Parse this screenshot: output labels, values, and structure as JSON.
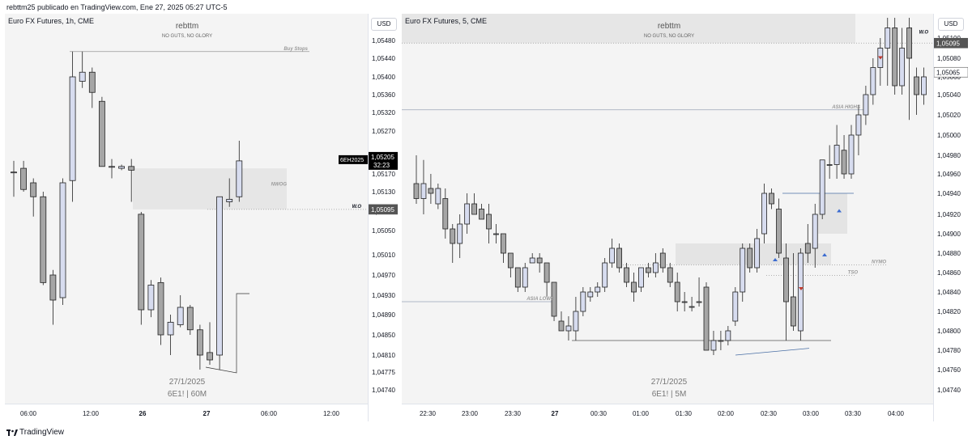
{
  "caption": "rebttm25 publicado en TradingView.com, Ene 27, 2025 05:27 UTC-5",
  "footer": {
    "brand": "TradingView"
  },
  "chart_data": [
    {
      "type": "candlestick",
      "symbol_title": "Euro FX Futures, 1h, CME",
      "watermark_author": "rebttm",
      "watermark_motto": "NO GUTS, NO GLORY",
      "watermark_date": "27/1/2025",
      "watermark_symbol": "6E1! | 60M",
      "currency": "USD",
      "ylim": [
        1.0472,
        1.0552
      ],
      "y_ticks": [
        "1,05480",
        "1,05440",
        "1,05400",
        "1,05360",
        "1,05320",
        "1,05270",
        "1,05220",
        "1,05170",
        "1,05130",
        "1,05090",
        "1,05050",
        "1,05010",
        "1,04970",
        "1,04930",
        "1,04890",
        "1,04850",
        "1,04810",
        "1,04775",
        "1,04740"
      ],
      "x_ticks": [
        "06:00",
        "12:00",
        "26",
        "27",
        "06:00",
        "12:00"
      ],
      "price_labels": [
        {
          "symbol": "6EH2025",
          "price": "1,05205",
          "countdown": "32:23",
          "value": 1.05205
        },
        {
          "price": "1,05095",
          "value": 1.05095
        }
      ],
      "annotations": [
        {
          "text": "Buy Stops",
          "value": 1.05455
        },
        {
          "text": "NWOG",
          "value": 1.0514
        },
        {
          "text": "W.O",
          "value": 1.05095
        }
      ],
      "nwog_zone": [
        1.05095,
        1.05185
      ],
      "candles": [
        {
          "o": 1.05175,
          "h": 1.05205,
          "l": 1.0512,
          "c": 1.05175
        },
        {
          "o": 1.05185,
          "h": 1.05205,
          "l": 1.0513,
          "c": 1.05135
        },
        {
          "o": 1.0515,
          "h": 1.0516,
          "l": 1.0508,
          "c": 1.0512
        },
        {
          "o": 1.0512,
          "h": 1.0513,
          "l": 1.0495,
          "c": 1.04955
        },
        {
          "o": 1.0497,
          "h": 1.0498,
          "l": 1.0487,
          "c": 1.0492
        },
        {
          "o": 1.04925,
          "h": 1.0516,
          "l": 1.0491,
          "c": 1.0515
        },
        {
          "o": 1.05155,
          "h": 1.05455,
          "l": 1.0511,
          "c": 1.054
        },
        {
          "o": 1.0539,
          "h": 1.05455,
          "l": 1.05375,
          "c": 1.0541
        },
        {
          "o": 1.0541,
          "h": 1.0542,
          "l": 1.0533,
          "c": 1.05365
        },
        {
          "o": 1.05345,
          "h": 1.05355,
          "l": 1.0519,
          "c": 1.0519
        },
        {
          "o": 1.0519,
          "h": 1.0521,
          "l": 1.0516,
          "c": 1.0519
        },
        {
          "o": 1.05185,
          "h": 1.05195,
          "l": 1.0518,
          "c": 1.0519
        },
        {
          "o": 1.0519,
          "h": 1.0521,
          "l": 1.0511,
          "c": 1.0518
        },
        {
          "o": 1.05085,
          "h": 1.0509,
          "l": 1.0487,
          "c": 1.049
        },
        {
          "o": 1.049,
          "h": 1.0496,
          "l": 1.04885,
          "c": 1.0495
        },
        {
          "o": 1.04955,
          "h": 1.04965,
          "l": 1.0483,
          "c": 1.0485
        },
        {
          "o": 1.0485,
          "h": 1.0489,
          "l": 1.0481,
          "c": 1.04875
        },
        {
          "o": 1.0487,
          "h": 1.0493,
          "l": 1.04865,
          "c": 1.04905
        },
        {
          "o": 1.04905,
          "h": 1.0491,
          "l": 1.0485,
          "c": 1.0486
        },
        {
          "o": 1.0486,
          "h": 1.0487,
          "l": 1.0478,
          "c": 1.0481
        },
        {
          "o": 1.04815,
          "h": 1.04875,
          "l": 1.0479,
          "c": 1.048
        },
        {
          "o": 1.0481,
          "h": 1.0512,
          "l": 1.0478,
          "c": 1.0512
        },
        {
          "o": 1.0511,
          "h": 1.0516,
          "l": 1.051,
          "c": 1.05115
        },
        {
          "o": 1.0512,
          "h": 1.0525,
          "l": 1.0511,
          "c": 1.05205
        }
      ]
    },
    {
      "type": "candlestick",
      "symbol_title": "Euro FX Futures, 5, CME",
      "watermark_author": "rebttm",
      "watermark_motto": "NO GUTS, NO GLORY",
      "watermark_date": "27/1/2025",
      "watermark_symbol": "6E1! | 5M",
      "currency": "USD",
      "ylim": [
        1.0472,
        1.0552
      ],
      "y_ticks": [
        "1,05100",
        "1,05080",
        "1,05060",
        "1,05040",
        "1,05020",
        "1,05000",
        "1,04980",
        "1,04960",
        "1,04940",
        "1,04920",
        "1,04900",
        "1,04880",
        "1,04860",
        "1,04840",
        "1,04820",
        "1,04800",
        "1,04780",
        "1,04760",
        "1,04740"
      ],
      "x_ticks": [
        "22:30",
        "23:00",
        "23:30",
        "27",
        "00:30",
        "01:00",
        "01:30",
        "02:00",
        "02:30",
        "03:00",
        "03:30",
        "04:00"
      ],
      "price_labels": [
        {
          "price": "1,05095",
          "value": 1.05095
        },
        {
          "price": "1,05065",
          "value": 1.05065
        }
      ],
      "annotations": [
        {
          "text": "ASIA HIGHS",
          "value": 1.05025
        },
        {
          "text": "NYMO",
          "value": 1.04868
        },
        {
          "text": "TSO",
          "value": 1.04857
        },
        {
          "text": "ASIA LOWS",
          "value": 1.0483
        },
        {
          "text": "W.O",
          "value": 1.05095
        }
      ],
      "candles": [
        {
          "o": 1.0495,
          "h": 1.0498,
          "l": 1.0493,
          "c": 1.04935
        },
        {
          "o": 1.04935,
          "h": 1.04975,
          "l": 1.0492,
          "c": 1.0495
        },
        {
          "o": 1.04945,
          "h": 1.0496,
          "l": 1.0493,
          "c": 1.0494
        },
        {
          "o": 1.0493,
          "h": 1.0495,
          "l": 1.04925,
          "c": 1.04945
        },
        {
          "o": 1.04935,
          "h": 1.04945,
          "l": 1.04895,
          "c": 1.04905
        },
        {
          "o": 1.04905,
          "h": 1.0491,
          "l": 1.0487,
          "c": 1.0489
        },
        {
          "o": 1.0489,
          "h": 1.0492,
          "l": 1.04875,
          "c": 1.0491
        },
        {
          "o": 1.0491,
          "h": 1.0494,
          "l": 1.049,
          "c": 1.0493
        },
        {
          "o": 1.0493,
          "h": 1.0494,
          "l": 1.0492,
          "c": 1.0492
        },
        {
          "o": 1.04925,
          "h": 1.0493,
          "l": 1.04915,
          "c": 1.04915
        },
        {
          "o": 1.0492,
          "h": 1.0493,
          "l": 1.0489,
          "c": 1.04905
        },
        {
          "o": 1.049,
          "h": 1.0491,
          "l": 1.0489,
          "c": 1.049
        },
        {
          "o": 1.049,
          "h": 1.049,
          "l": 1.0487,
          "c": 1.0488
        },
        {
          "o": 1.0488,
          "h": 1.0488,
          "l": 1.04855,
          "c": 1.04865
        },
        {
          "o": 1.04865,
          "h": 1.04865,
          "l": 1.0484,
          "c": 1.04845
        },
        {
          "o": 1.04845,
          "h": 1.0487,
          "l": 1.0484,
          "c": 1.04865
        },
        {
          "o": 1.0487,
          "h": 1.0488,
          "l": 1.0487,
          "c": 1.04875
        },
        {
          "o": 1.04875,
          "h": 1.0488,
          "l": 1.0486,
          "c": 1.0487
        },
        {
          "o": 1.0487,
          "h": 1.0487,
          "l": 1.04835,
          "c": 1.0485
        },
        {
          "o": 1.0485,
          "h": 1.0485,
          "l": 1.0481,
          "c": 1.04815
        },
        {
          "o": 1.0481,
          "h": 1.0482,
          "l": 1.048,
          "c": 1.048
        },
        {
          "o": 1.048,
          "h": 1.04815,
          "l": 1.0479,
          "c": 1.04805
        },
        {
          "o": 1.048,
          "h": 1.04835,
          "l": 1.0479,
          "c": 1.0482
        },
        {
          "o": 1.0482,
          "h": 1.04845,
          "l": 1.04815,
          "c": 1.0484
        },
        {
          "o": 1.04835,
          "h": 1.04845,
          "l": 1.0483,
          "c": 1.0484
        },
        {
          "o": 1.0484,
          "h": 1.0485,
          "l": 1.04835,
          "c": 1.04845
        },
        {
          "o": 1.04845,
          "h": 1.04875,
          "l": 1.0484,
          "c": 1.0487
        },
        {
          "o": 1.0487,
          "h": 1.04895,
          "l": 1.04865,
          "c": 1.04885
        },
        {
          "o": 1.04885,
          "h": 1.0489,
          "l": 1.0486,
          "c": 1.04865
        },
        {
          "o": 1.04865,
          "h": 1.0487,
          "l": 1.04845,
          "c": 1.0485
        },
        {
          "o": 1.0485,
          "h": 1.0486,
          "l": 1.0483,
          "c": 1.0484
        },
        {
          "o": 1.04845,
          "h": 1.04865,
          "l": 1.0484,
          "c": 1.04865
        },
        {
          "o": 1.04865,
          "h": 1.0487,
          "l": 1.04855,
          "c": 1.0486
        },
        {
          "o": 1.0486,
          "h": 1.0488,
          "l": 1.04855,
          "c": 1.0487
        },
        {
          "o": 1.0488,
          "h": 1.04885,
          "l": 1.0486,
          "c": 1.04865
        },
        {
          "o": 1.04865,
          "h": 1.0487,
          "l": 1.04845,
          "c": 1.0485
        },
        {
          "o": 1.0485,
          "h": 1.0486,
          "l": 1.0482,
          "c": 1.0483
        },
        {
          "o": 1.0483,
          "h": 1.0484,
          "l": 1.0482,
          "c": 1.0483
        },
        {
          "o": 1.04825,
          "h": 1.04835,
          "l": 1.0482,
          "c": 1.04825
        },
        {
          "o": 1.0483,
          "h": 1.04855,
          "l": 1.04825,
          "c": 1.0483
        },
        {
          "o": 1.04845,
          "h": 1.0485,
          "l": 1.0478,
          "c": 1.0478
        },
        {
          "o": 1.0478,
          "h": 1.048,
          "l": 1.04775,
          "c": 1.0479
        },
        {
          "o": 1.0479,
          "h": 1.048,
          "l": 1.0478,
          "c": 1.0479
        },
        {
          "o": 1.0479,
          "h": 1.04805,
          "l": 1.04785,
          "c": 1.048
        },
        {
          "o": 1.0481,
          "h": 1.04845,
          "l": 1.04805,
          "c": 1.0484
        },
        {
          "o": 1.0484,
          "h": 1.0489,
          "l": 1.0483,
          "c": 1.04885
        },
        {
          "o": 1.04885,
          "h": 1.0489,
          "l": 1.0486,
          "c": 1.04865
        },
        {
          "o": 1.04865,
          "h": 1.04905,
          "l": 1.0486,
          "c": 1.04895
        },
        {
          "o": 1.049,
          "h": 1.0495,
          "l": 1.0489,
          "c": 1.0494
        },
        {
          "o": 1.0494,
          "h": 1.04945,
          "l": 1.04925,
          "c": 1.0493
        },
        {
          "o": 1.04925,
          "h": 1.04935,
          "l": 1.04875,
          "c": 1.0488
        },
        {
          "o": 1.04875,
          "h": 1.0489,
          "l": 1.0479,
          "c": 1.0483
        },
        {
          "o": 1.04835,
          "h": 1.0488,
          "l": 1.048,
          "c": 1.04805
        },
        {
          "o": 1.048,
          "h": 1.04885,
          "l": 1.0479,
          "c": 1.0488
        },
        {
          "o": 1.0489,
          "h": 1.0491,
          "l": 1.0487,
          "c": 1.0488
        },
        {
          "o": 1.04885,
          "h": 1.0493,
          "l": 1.04865,
          "c": 1.0492
        },
        {
          "o": 1.0492,
          "h": 1.0497,
          "l": 1.04915,
          "c": 1.04975
        },
        {
          "o": 1.0497,
          "h": 1.0499,
          "l": 1.04955,
          "c": 1.0497
        },
        {
          "o": 1.0497,
          "h": 1.0501,
          "l": 1.04955,
          "c": 1.0499
        },
        {
          "o": 1.04985,
          "h": 1.05,
          "l": 1.04955,
          "c": 1.0496
        },
        {
          "o": 1.0496,
          "h": 1.0501,
          "l": 1.04955,
          "c": 1.05
        },
        {
          "o": 1.05,
          "h": 1.0503,
          "l": 1.0498,
          "c": 1.0502
        },
        {
          "o": 1.0502,
          "h": 1.0505,
          "l": 1.0501,
          "c": 1.0504
        },
        {
          "o": 1.0504,
          "h": 1.0508,
          "l": 1.0503,
          "c": 1.0507
        },
        {
          "o": 1.0507,
          "h": 1.051,
          "l": 1.0505,
          "c": 1.0509
        },
        {
          "o": 1.0509,
          "h": 1.0512,
          "l": 1.0505,
          "c": 1.0511
        },
        {
          "o": 1.0511,
          "h": 1.0512,
          "l": 1.0504,
          "c": 1.0505
        },
        {
          "o": 1.0505,
          "h": 1.0511,
          "l": 1.0504,
          "c": 1.0509
        },
        {
          "o": 1.0511,
          "h": 1.0512,
          "l": 1.05015,
          "c": 1.0508
        },
        {
          "o": 1.0506,
          "h": 1.0507,
          "l": 1.0502,
          "c": 1.0504
        },
        {
          "o": 1.0504,
          "h": 1.0507,
          "l": 1.0503,
          "c": 1.0506
        }
      ]
    }
  ]
}
